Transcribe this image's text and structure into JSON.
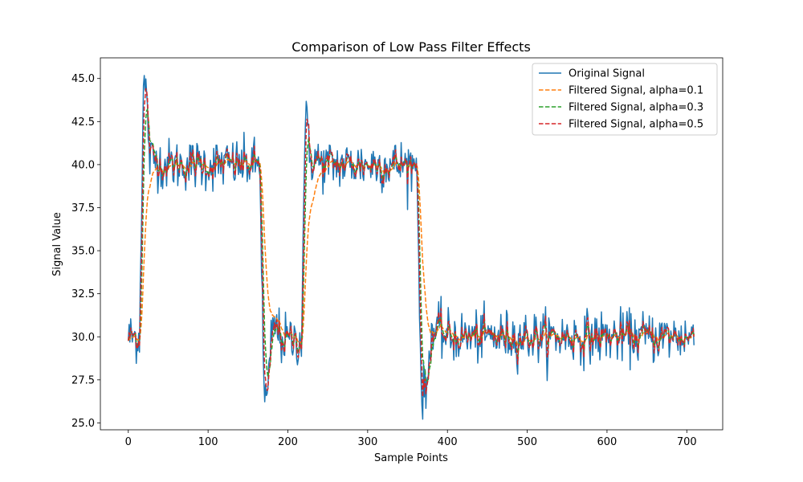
{
  "chart_data": {
    "type": "line",
    "title": "Comparison of Low Pass Filter Effects",
    "xlabel": "Sample Points",
    "ylabel": "Signal Value",
    "xlim": [
      -35,
      745
    ],
    "ylim": [
      24.6,
      46.2
    ],
    "xticks": [
      0,
      100,
      200,
      300,
      400,
      500,
      600,
      700
    ],
    "yticks": [
      25.0,
      27.5,
      30.0,
      32.5,
      35.0,
      37.5,
      40.0,
      42.5,
      45.0
    ],
    "ytick_labels": [
      "25.0",
      "27.5",
      "30.0",
      "32.5",
      "35.0",
      "37.5",
      "40.0",
      "42.5",
      "45.0"
    ],
    "legend_position": "top-right",
    "grid": false,
    "series": [
      {
        "name": "Original Signal",
        "color": "#1f77b4",
        "style": "solid",
        "alpha": 1.0
      },
      {
        "name": "Filtered Signal, alpha=0.1",
        "color": "#ff7f0e",
        "style": "dashed",
        "alpha": 0.1
      },
      {
        "name": "Filtered Signal, alpha=0.3",
        "color": "#2ca02c",
        "style": "dashed",
        "alpha": 0.3
      },
      {
        "name": "Filtered Signal, alpha=0.5",
        "color": "#d62728",
        "style": "dashed",
        "alpha": 0.5
      }
    ],
    "signal_segments": [
      {
        "x_start": 0,
        "x_end": 17,
        "level": 30.0
      },
      {
        "x_start": 17,
        "x_end": 25,
        "level": 44.5
      },
      {
        "x_start": 25,
        "x_end": 40,
        "level": 40.3
      },
      {
        "x_start": 40,
        "x_end": 168,
        "level": 40.0
      },
      {
        "x_start": 168,
        "x_end": 178,
        "level": 26.5
      },
      {
        "x_start": 178,
        "x_end": 190,
        "level": 30.5
      },
      {
        "x_start": 190,
        "x_end": 220,
        "level": 29.8
      },
      {
        "x_start": 220,
        "x_end": 225,
        "level": 43.5
      },
      {
        "x_start": 225,
        "x_end": 240,
        "level": 40.3
      },
      {
        "x_start": 240,
        "x_end": 365,
        "level": 40.0
      },
      {
        "x_start": 365,
        "x_end": 377,
        "level": 26.8
      },
      {
        "x_start": 377,
        "x_end": 395,
        "level": 30.3
      },
      {
        "x_start": 395,
        "x_end": 710,
        "level": 30.0
      }
    ],
    "noise_amplitude": 1.0,
    "n_points": 710
  }
}
